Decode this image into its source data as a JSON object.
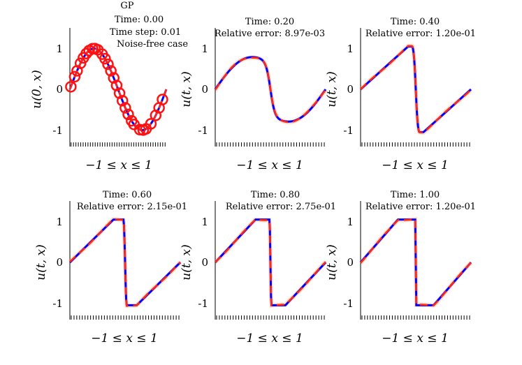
{
  "figure_title": "GP",
  "colors": {
    "exact": "#0000ff",
    "prediction": "#ff2a1a",
    "band": "#f4a261",
    "obs": "#ff1111"
  },
  "chart_data": [
    {
      "type": "line",
      "panel": 1,
      "title_lines": [
        "Time: 0.00",
        "Time step: 0.01",
        "Noise-free case"
      ],
      "xlabel": "−1 ≤ x ≤ 1",
      "ylabel": "u(0, x)",
      "xlim": [
        -1,
        1
      ],
      "ylim": [
        -1.4,
        1.4
      ],
      "yticks": [
        -1,
        0,
        1
      ],
      "ytick_labels": [
        "-1",
        "0",
        "1"
      ],
      "time": 0.0,
      "observations": {
        "x": [
          -0.98,
          -0.9,
          -0.85,
          -0.78,
          -0.72,
          -0.66,
          -0.6,
          -0.53,
          -0.48,
          -0.42,
          -0.33,
          -0.27,
          -0.21,
          -0.15,
          -0.09,
          -0.03,
          0.03,
          0.09,
          0.15,
          0.21,
          0.28,
          0.33,
          0.45,
          0.52,
          0.58,
          0.68,
          0.78,
          0.85,
          0.92
        ]
      }
    },
    {
      "type": "line",
      "panel": 2,
      "title_lines": [
        "Time: 0.20",
        "Relative error: 8.97e-03"
      ],
      "xlabel": "−1 ≤ x ≤ 1",
      "ylabel": "u(t, x)",
      "xlim": [
        -1,
        1
      ],
      "ylim": [
        -1.4,
        1.4
      ],
      "yticks": [
        -1,
        0,
        1
      ],
      "ytick_labels": [
        "-1",
        "0",
        "1"
      ],
      "time": 0.2
    },
    {
      "type": "line",
      "panel": 3,
      "title_lines": [
        "Time: 0.40",
        "Relative error: 1.20e-01"
      ],
      "xlabel": "−1 ≤ x ≤ 1",
      "ylabel": "u(t, x)",
      "xlim": [
        -1,
        1
      ],
      "ylim": [
        -1.4,
        1.4
      ],
      "yticks": [
        -1,
        0,
        1
      ],
      "ytick_labels": [
        "-1",
        "0",
        "1"
      ],
      "time": 0.4
    },
    {
      "type": "line",
      "panel": 4,
      "title_lines": [
        "Time: 0.60",
        "Relative error: 2.15e-01"
      ],
      "xlabel": "−1 ≤ x ≤ 1",
      "ylabel": "u(t, x)",
      "xlim": [
        -1,
        1
      ],
      "ylim": [
        -1.4,
        1.4
      ],
      "yticks": [
        -1,
        0,
        1
      ],
      "ytick_labels": [
        "-1",
        "0",
        "1"
      ],
      "time": 0.6
    },
    {
      "type": "line",
      "panel": 5,
      "title_lines": [
        "Time: 0.80",
        "Relative error: 2.75e-01"
      ],
      "xlabel": "−1 ≤ x ≤ 1",
      "ylabel": "u(t, x)",
      "xlim": [
        -1,
        1
      ],
      "ylim": [
        -1.4,
        1.4
      ],
      "yticks": [
        -1,
        0,
        1
      ],
      "ytick_labels": [
        "-1",
        "0",
        "1"
      ],
      "time": 0.8
    },
    {
      "type": "line",
      "panel": 6,
      "title_lines": [
        "Time: 1.00",
        "Relative error: 1.20e-01"
      ],
      "xlabel": "−1 ≤ x ≤ 1",
      "ylabel": "u(t, x)",
      "xlim": [
        -1,
        1
      ],
      "ylim": [
        -1.4,
        1.4
      ],
      "yticks": [
        -1,
        0,
        1
      ],
      "ytick_labels": [
        "-1",
        "0",
        "1"
      ],
      "time": 1.0
    }
  ]
}
